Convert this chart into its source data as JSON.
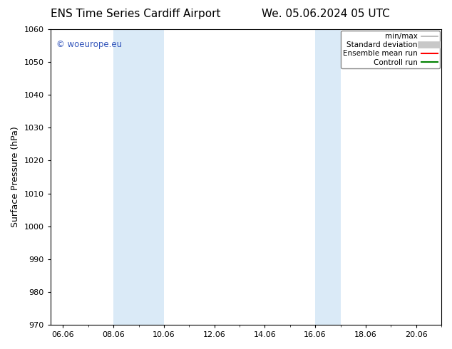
{
  "title_left": "ENS Time Series Cardiff Airport",
  "title_right": "We. 05.06.2024 05 UTC",
  "ylabel": "Surface Pressure (hPa)",
  "ylim": [
    970,
    1060
  ],
  "yticks": [
    970,
    980,
    990,
    1000,
    1010,
    1020,
    1030,
    1040,
    1050,
    1060
  ],
  "xlim_start": 5.5,
  "xlim_end": 21.0,
  "xtick_labels": [
    "06.06",
    "08.06",
    "10.06",
    "12.06",
    "14.06",
    "16.06",
    "18.06",
    "20.06"
  ],
  "xtick_positions": [
    6.0,
    8.0,
    10.0,
    12.0,
    14.0,
    16.0,
    18.0,
    20.0
  ],
  "shaded_bands": [
    {
      "x_start": 8.0,
      "x_end": 10.0,
      "color": "#daeaf7"
    },
    {
      "x_start": 16.0,
      "x_end": 17.0,
      "color": "#daeaf7"
    }
  ],
  "watermark_text": "© woeurope.eu",
  "watermark_color": "#3355bb",
  "background_color": "#ffffff",
  "legend_items": [
    {
      "label": "min/max",
      "color": "#b0b0b0",
      "linewidth": 1.2
    },
    {
      "label": "Standard deviation",
      "color": "#c8c8c8",
      "linewidth": 7
    },
    {
      "label": "Ensemble mean run",
      "color": "#ff0000",
      "linewidth": 1.5
    },
    {
      "label": "Controll run",
      "color": "#008000",
      "linewidth": 1.5
    }
  ],
  "title_fontsize": 11,
  "ylabel_fontsize": 9,
  "tick_fontsize": 8,
  "legend_fontsize": 7.5,
  "watermark_fontsize": 8.5
}
